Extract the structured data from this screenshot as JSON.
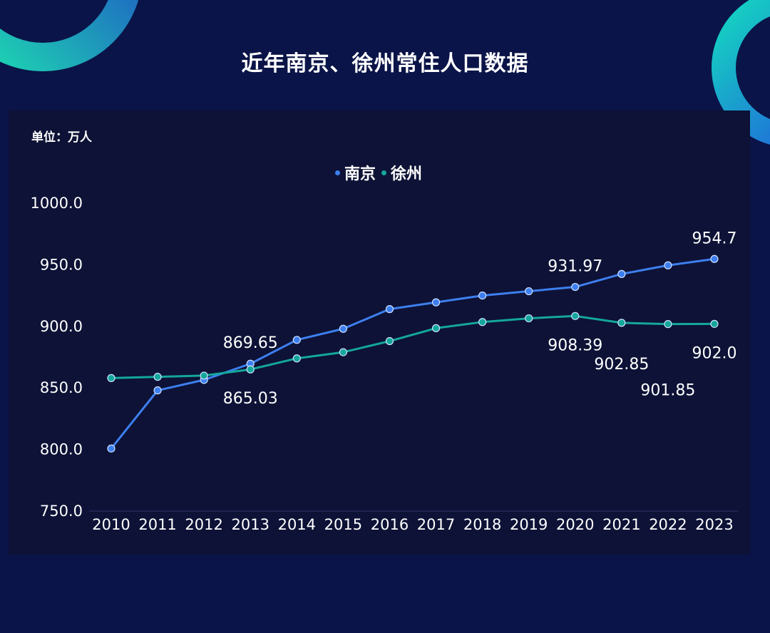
{
  "title": "近年南京、徐州常住人口数据",
  "unit_label": "单位：万人",
  "chart_data": {
    "type": "line",
    "title": "近年南京、徐州常住人口数据",
    "ylabel": "单位：万人",
    "xlabel": "",
    "x": [
      "2010",
      "2011",
      "2012",
      "2013",
      "2014",
      "2015",
      "2016",
      "2017",
      "2018",
      "2019",
      "2020",
      "2021",
      "2022",
      "2023"
    ],
    "ylim": [
      750,
      1000
    ],
    "yticks": [
      "750.0",
      "800.0",
      "850.0",
      "900.0",
      "950.0",
      "1000.0"
    ],
    "grid": false,
    "legend_position": "top-center",
    "series": [
      {
        "name": "南京",
        "color": "#3d7fef",
        "values": [
          800.8,
          848,
          856.5,
          869.65,
          889,
          898,
          914,
          919.5,
          925,
          928.5,
          931.97,
          942.5,
          949.5,
          954.7
        ]
      },
      {
        "name": "徐州",
        "color": "#14a79a",
        "values": [
          858,
          859,
          860,
          865.03,
          874,
          879,
          888,
          898.5,
          903.5,
          906.5,
          908.39,
          902.85,
          901.85,
          902.0
        ]
      }
    ],
    "data_labels": [
      {
        "series": 0,
        "index": 3,
        "text": "869.65",
        "pos": "above"
      },
      {
        "series": 1,
        "index": 3,
        "text": "865.03",
        "pos": "below"
      },
      {
        "series": 0,
        "index": 10,
        "text": "931.97",
        "pos": "above"
      },
      {
        "series": 1,
        "index": 10,
        "text": "908.39",
        "pos": "below"
      },
      {
        "series": 1,
        "index": 11,
        "text": "902.85",
        "pos": "below2"
      },
      {
        "series": 1,
        "index": 12,
        "text": "901.85",
        "pos": "below3"
      },
      {
        "series": 0,
        "index": 13,
        "text": "954.7",
        "pos": "above"
      },
      {
        "series": 1,
        "index": 13,
        "text": "902.0",
        "pos": "below"
      }
    ]
  }
}
